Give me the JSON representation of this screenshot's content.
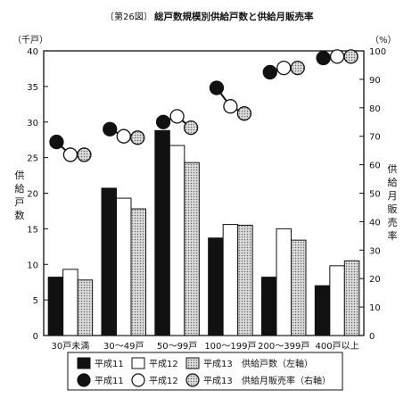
{
  "chart_data": {
    "type": "bar",
    "figure_label": "〔第26図〕",
    "title": "総戸数規模別供給戸数と供給月販売率",
    "left_axis": {
      "unit": "（千戸）",
      "label": "供給戸数",
      "ylim": [
        0,
        40
      ],
      "ticks": [
        "0",
        "5",
        "10",
        "15",
        "20",
        "25",
        "30",
        "35",
        "40"
      ]
    },
    "right_axis": {
      "unit": "（%）",
      "label": "供給月販売率",
      "ylim": [
        0,
        100
      ],
      "ticks": [
        "0",
        "10",
        "20",
        "30",
        "40",
        "50",
        "60",
        "70",
        "80",
        "90",
        "100"
      ]
    },
    "categories": [
      "30戸未満",
      "30〜49戸",
      "50〜99戸",
      "100〜199戸",
      "200〜399戸",
      "400戸以上"
    ],
    "series": [
      {
        "name": "平成11",
        "kind": "bar",
        "axis": "left",
        "style": "black",
        "values": [
          8.2,
          20.7,
          28.8,
          13.7,
          8.2,
          7.0
        ]
      },
      {
        "name": "平成12",
        "kind": "bar",
        "axis": "left",
        "style": "white",
        "values": [
          9.3,
          19.3,
          26.7,
          15.6,
          15.0,
          9.8
        ]
      },
      {
        "name": "平成13",
        "kind": "bar",
        "axis": "left",
        "style": "dotted",
        "values": [
          7.8,
          17.8,
          24.3,
          15.5,
          13.4,
          10.5
        ]
      },
      {
        "name": "平成11",
        "kind": "point",
        "axis": "right",
        "style": "black",
        "values": [
          68,
          72.5,
          75,
          87,
          92.5,
          97.5
        ]
      },
      {
        "name": "平成12",
        "kind": "point",
        "axis": "right",
        "style": "white",
        "values": [
          63.5,
          70,
          77,
          80.5,
          94,
          98
        ]
      },
      {
        "name": "平成13",
        "kind": "point",
        "axis": "right",
        "style": "dotted",
        "values": [
          63.5,
          69.5,
          73,
          78,
          94,
          98
        ]
      }
    ],
    "legend": {
      "bar_caption": "供給戸数（左軸）",
      "point_caption": "供給月販売率（右軸）"
    },
    "colors": {
      "black": "#111111",
      "white": "#ffffff",
      "dotted": "#c8c8c8"
    }
  }
}
